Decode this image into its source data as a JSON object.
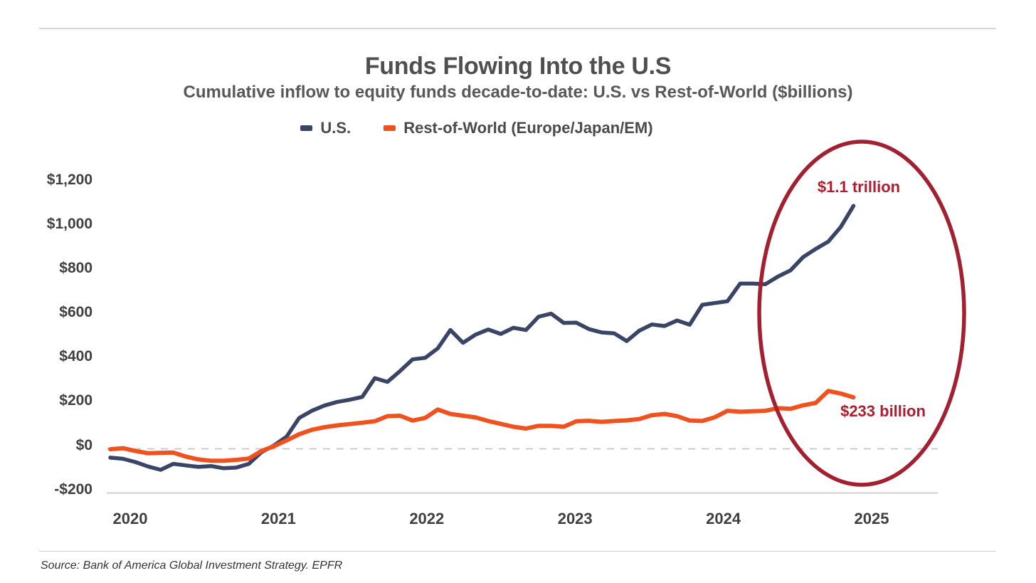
{
  "page": {
    "title": "Funds Flowing Into the U.S",
    "subtitle": "Cumulative inflow to equity funds decade-to-date: U.S. vs Rest-of-World ($billions)",
    "source": "Source: Bank of America Global Investment Strategy. EPFR"
  },
  "legend": {
    "items": [
      {
        "label": "U.S.",
        "color": "#3A4566"
      },
      {
        "label": "Rest-of-World (Europe/Japan/EM)",
        "color": "#F0521F"
      }
    ]
  },
  "annotations": {
    "us_end_label": "$1.1 trillion",
    "row_end_label": "$233 billion",
    "label_color": "#B01D2E",
    "ellipse_color": "#A32031",
    "ellipse_meaning": "highlight of 2024-2025 divergence between U.S. and Rest-of-World inflows"
  },
  "chart_data": {
    "type": "line",
    "title": "Funds Flowing Into the U.S",
    "subtitle": "Cumulative inflow to equity funds decade-to-date: U.S. vs Rest-of-World ($billions)",
    "x_unit": "months, Jan 2020 - Dec 2024",
    "x_tick_labels": [
      "2020",
      "2021",
      "2022",
      "2023",
      "2024",
      "2025"
    ],
    "y_tick_labels": [
      "$1,200",
      "$1,000",
      "$800",
      "$600",
      "$400",
      "$200",
      "$0",
      "-$200"
    ],
    "y_tick_values": [
      1200,
      1000,
      800,
      600,
      400,
      200,
      0,
      -200
    ],
    "ylim": [
      -200,
      1300
    ],
    "grid": "dashed zero line and solid -200 baseline only",
    "legend_position": "top-center",
    "series": [
      {
        "name": "U.S.",
        "color": "#3A4566",
        "values": [
          -40,
          -45,
          -60,
          -80,
          -95,
          -68,
          -75,
          -82,
          -78,
          -88,
          -85,
          -68,
          -15,
          15,
          55,
          140,
          172,
          196,
          212,
          222,
          235,
          320,
          303,
          352,
          405,
          412,
          455,
          538,
          480,
          517,
          540,
          520,
          548,
          538,
          598,
          612,
          570,
          571,
          542,
          527,
          523,
          488,
          535,
          563,
          556,
          581,
          562,
          652,
          660,
          668,
          748,
          748,
          745,
          780,
          808,
          868,
          905,
          938,
          1005,
          1100
        ]
      },
      {
        "name": "Rest-of-World (Europe/Japan/EM)",
        "color": "#F0521F",
        "values": [
          -2,
          3,
          -10,
          -20,
          -18,
          -17,
          -35,
          -48,
          -54,
          -54,
          -50,
          -44,
          -10,
          12,
          38,
          66,
          86,
          98,
          106,
          112,
          118,
          125,
          148,
          150,
          128,
          140,
          178,
          158,
          150,
          142,
          126,
          113,
          100,
          92,
          104,
          104,
          100,
          125,
          127,
          122,
          126,
          129,
          135,
          152,
          158,
          148,
          128,
          126,
          143,
          172,
          168,
          170,
          172,
          184,
          181,
          197,
          208,
          262,
          250,
          233
        ]
      }
    ],
    "end_values": {
      "us_billions": 1100,
      "rest_of_world_billions": 233
    }
  }
}
